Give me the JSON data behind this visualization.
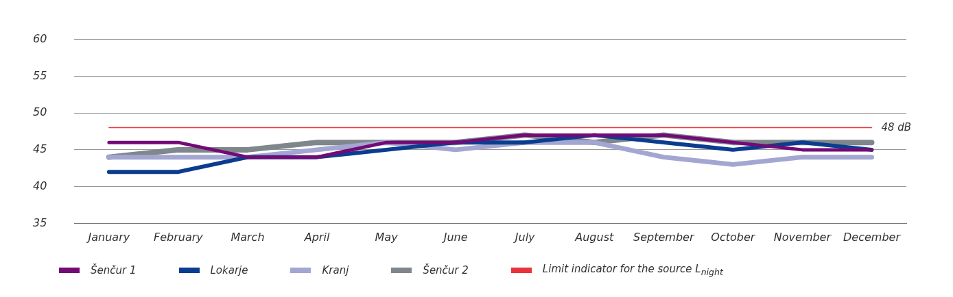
{
  "chart_data": {
    "type": "line",
    "categories": [
      "January",
      "February",
      "March",
      "April",
      "May",
      "June",
      "July",
      "August",
      "September",
      "October",
      "November",
      "December"
    ],
    "series": [
      {
        "name": "Šenčur 1",
        "color": "#730a76",
        "values": [
          46,
          46,
          44,
          44,
          46,
          46,
          47,
          47,
          47,
          46,
          45,
          45
        ]
      },
      {
        "name": "Lokarje",
        "color": "#0a3d8f",
        "values": [
          42,
          42,
          44,
          44,
          45,
          46,
          46,
          47,
          46,
          45,
          46,
          45
        ]
      },
      {
        "name": "Kranj",
        "color": "#a4a6d2",
        "values": [
          44,
          44,
          44,
          45,
          46,
          45,
          46,
          46,
          44,
          43,
          44,
          44
        ]
      },
      {
        "name": "Šenčur 2",
        "color": "#7f878d",
        "values": [
          44,
          45,
          45,
          46,
          46,
          46,
          47,
          46,
          47,
          46,
          46,
          46
        ]
      },
      {
        "name": "Limit indicator for the source L$_{night}$",
        "color": "#e8333a",
        "values": [
          48,
          48,
          48,
          48,
          48,
          48,
          48,
          48,
          48,
          48,
          48,
          48
        ]
      }
    ],
    "annotations": [
      {
        "text": "48 dB",
        "x": "December",
        "y": 48
      }
    ],
    "ylim": [
      35,
      60
    ],
    "yticks": [
      35,
      40,
      45,
      50,
      55,
      60
    ],
    "grid": "y",
    "legend": "bottom",
    "marker": "none",
    "line_style": "solid"
  }
}
